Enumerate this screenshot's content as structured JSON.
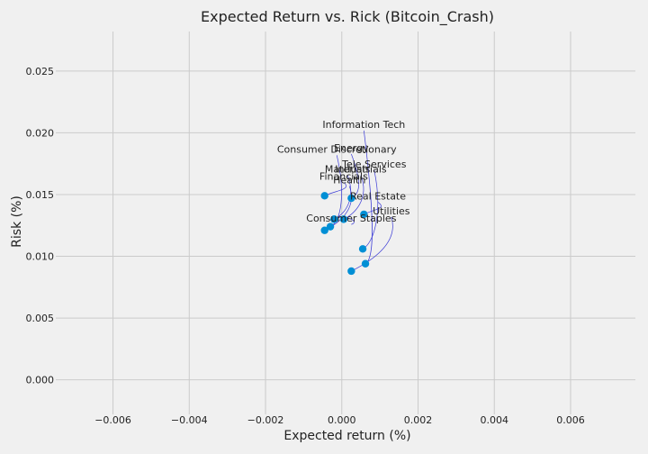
{
  "chart_data": {
    "type": "scatter",
    "title": "Expected Return vs. Rick (Bitcoin_Crash)",
    "xlabel": "Expected return (%)",
    "ylabel": "Risk (%)",
    "xlim": [
      -0.0075,
      0.0077
    ],
    "ylim": [
      -0.0028,
      0.0282
    ],
    "xticks": [
      -0.006,
      -0.004,
      -0.002,
      0.0,
      0.002,
      0.004,
      0.006
    ],
    "xtick_labels": [
      "−0.006",
      "−0.004",
      "−0.002",
      "0.000",
      "0.002",
      "0.004",
      "0.006"
    ],
    "yticks": [
      0.0,
      0.005,
      0.01,
      0.015,
      0.02,
      0.025
    ],
    "ytick_labels": [
      "0.000",
      "0.005",
      "0.010",
      "0.015",
      "0.020",
      "0.025"
    ],
    "grid": true,
    "point_color": "#008fd5",
    "connector_color": "#3b3bd6",
    "points": [
      {
        "label": "Information Tech",
        "x": 0.00062,
        "y": 0.0094,
        "label_x": 0.00058,
        "label_y": 0.0204
      },
      {
        "label": "Energy",
        "x": 0.00025,
        "y": 0.0147,
        "label_x": 0.00025,
        "label_y": 0.0185
      },
      {
        "label": "Consumer Discretionary",
        "x": -0.0003,
        "y": 0.0124,
        "label_x": -0.00013,
        "label_y": 0.0184
      },
      {
        "label": "Tele Services",
        "x": 0.00055,
        "y": 0.0106,
        "label_x": 0.00085,
        "label_y": 0.0172
      },
      {
        "label": "Materials",
        "x": -0.0002,
        "y": 0.013,
        "label_x": 0.00015,
        "label_y": 0.0168
      },
      {
        "label": "Industrials",
        "x": 5e-05,
        "y": 0.013,
        "label_x": 0.0005,
        "label_y": 0.0168
      },
      {
        "label": "Financials",
        "x": -0.00045,
        "y": 0.0149,
        "label_x": 5e-05,
        "label_y": 0.0162
      },
      {
        "label": "Health",
        "x": -0.00045,
        "y": 0.0121,
        "label_x": 0.0002,
        "label_y": 0.0159
      },
      {
        "label": "Real Estate",
        "x": 0.00058,
        "y": 0.0134,
        "label_x": 0.00095,
        "label_y": 0.0146
      },
      {
        "label": "Utilities",
        "x": 0.00025,
        "y": 0.0088,
        "label_x": 0.0013,
        "label_y": 0.0134
      },
      {
        "label": "Consumer Staples",
        "x": -0.0002,
        "y": 0.013,
        "label_x": 0.00025,
        "label_y": 0.0128
      }
    ]
  }
}
